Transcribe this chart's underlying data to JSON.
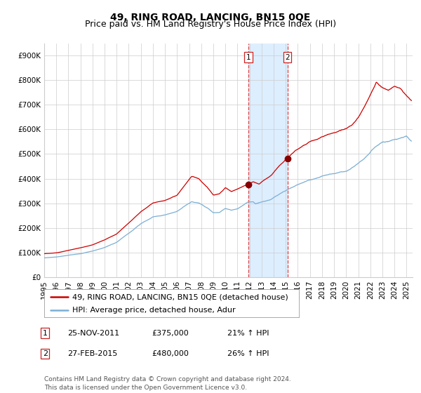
{
  "title": "49, RING ROAD, LANCING, BN15 0QE",
  "subtitle": "Price paid vs. HM Land Registry's House Price Index (HPI)",
  "red_line_color": "#cc0000",
  "blue_line_color": "#7bafd4",
  "shading_color": "#ddeeff",
  "marker_color": "#880000",
  "dashed_line_color": "#dd4444",
  "grid_color": "#cccccc",
  "background_color": "#ffffff",
  "ylim": [
    0,
    950000
  ],
  "yticks": [
    0,
    100000,
    200000,
    300000,
    400000,
    500000,
    600000,
    700000,
    800000,
    900000
  ],
  "ytick_labels": [
    "£0",
    "£100K",
    "£200K",
    "£300K",
    "£400K",
    "£500K",
    "£600K",
    "£700K",
    "£800K",
    "£900K"
  ],
  "xlim_start": 1995.0,
  "xlim_end": 2025.5,
  "transaction1_x": 2011.9,
  "transaction1_y": 375000,
  "transaction2_x": 2015.15,
  "transaction2_y": 480000,
  "shade_x1": 2011.9,
  "shade_x2": 2015.15,
  "legend_line1": "49, RING ROAD, LANCING, BN15 0QE (detached house)",
  "legend_line2": "HPI: Average price, detached house, Adur",
  "table_row1_num": "1",
  "table_row1_date": "25-NOV-2011",
  "table_row1_price": "£375,000",
  "table_row1_hpi": "21% ↑ HPI",
  "table_row2_num": "2",
  "table_row2_date": "27-FEB-2015",
  "table_row2_price": "£480,000",
  "table_row2_hpi": "26% ↑ HPI",
  "footer": "Contains HM Land Registry data © Crown copyright and database right 2024.\nThis data is licensed under the Open Government Licence v3.0.",
  "title_fontsize": 10,
  "subtitle_fontsize": 9,
  "axis_fontsize": 7.5,
  "legend_fontsize": 8,
  "table_fontsize": 8,
  "footer_fontsize": 6.5
}
